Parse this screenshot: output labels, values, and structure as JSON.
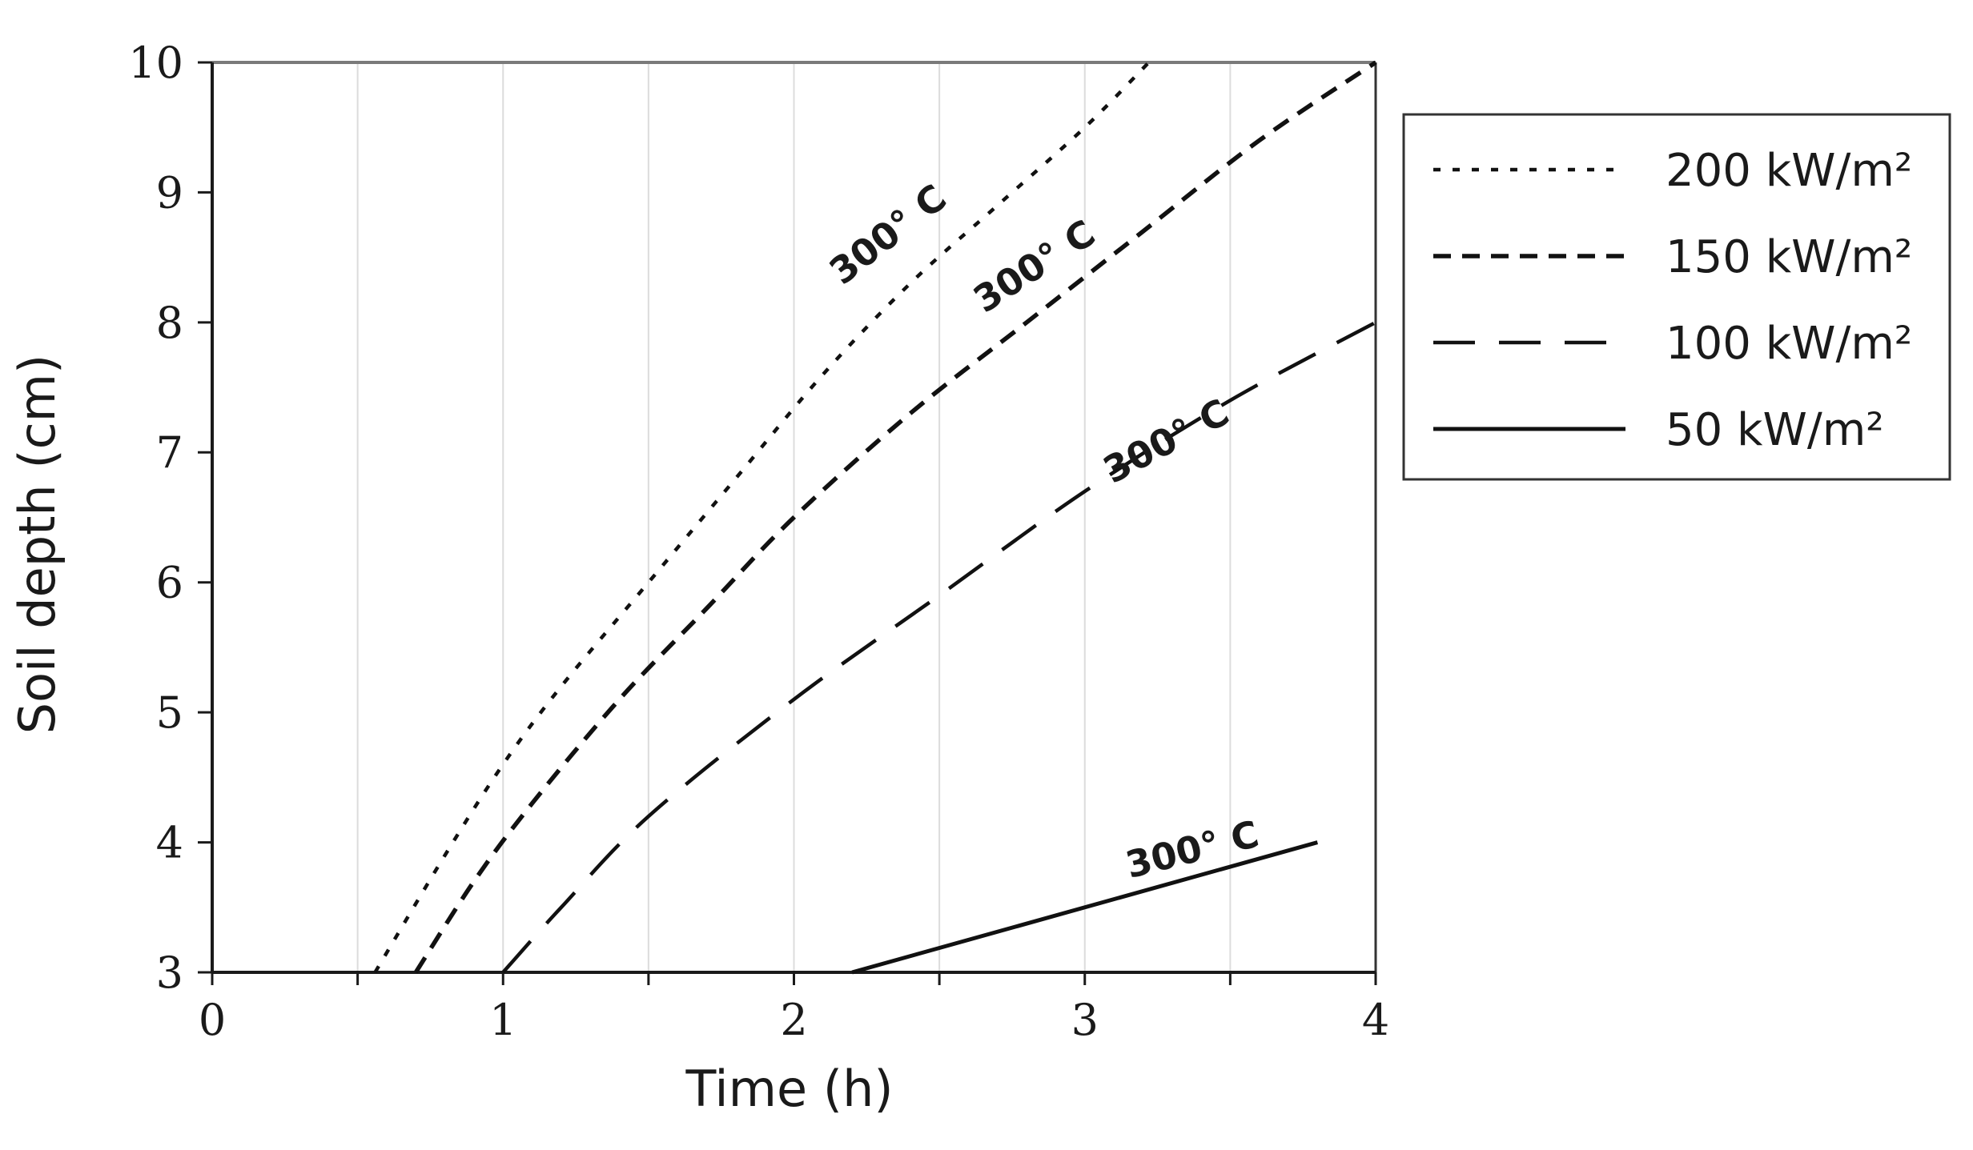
{
  "chart_data": {
    "type": "line",
    "title": "",
    "xlabel": "Time (h)",
    "ylabel": "Soil depth (cm)",
    "xlim": [
      0,
      4
    ],
    "ylim": [
      3,
      10
    ],
    "xticks": [
      0,
      1,
      2,
      3,
      4
    ],
    "yticks": [
      3,
      4,
      5,
      6,
      7,
      8,
      9,
      10
    ],
    "xtick_labels": [
      "0",
      "1",
      "2",
      "3",
      "4"
    ],
    "ytick_labels": [
      "3",
      "4",
      "5",
      "6",
      "7",
      "8",
      "9",
      "10"
    ],
    "grid": "vertical",
    "legend_position": "right",
    "series": [
      {
        "name": "200 kW/m²",
        "style": "dotted",
        "x": [
          0.56,
          0.8,
          1.0,
          1.2,
          1.5,
          1.8,
          2.1,
          2.4,
          2.7,
          3.0,
          3.22
        ],
        "y": [
          3.0,
          3.9,
          4.6,
          5.2,
          6.0,
          6.8,
          7.6,
          8.3,
          8.9,
          9.5,
          10.0
        ]
      },
      {
        "name": "150 kW/m²",
        "style": "short-dash",
        "x": [
          0.7,
          0.9,
          1.1,
          1.4,
          1.7,
          2.0,
          2.4,
          2.8,
          3.2,
          3.6,
          4.0
        ],
        "y": [
          3.0,
          3.7,
          4.3,
          5.1,
          5.8,
          6.5,
          7.3,
          8.0,
          8.7,
          9.4,
          10.0
        ]
      },
      {
        "name": "100 kW/m²",
        "style": "long-dash",
        "x": [
          1.0,
          1.2,
          1.5,
          2.0,
          2.5,
          3.0,
          3.5,
          4.0
        ],
        "y": [
          3.0,
          3.5,
          4.2,
          5.1,
          5.9,
          6.7,
          7.4,
          8.0
        ]
      },
      {
        "name": "50 kW/m²",
        "style": "solid",
        "x": [
          2.2,
          3.8
        ],
        "y": [
          3.0,
          4.0
        ]
      }
    ],
    "annotations": [
      {
        "text": "300° C",
        "series": "200 kW/m²",
        "x": 2.35,
        "y": 8.6,
        "angle": -38
      },
      {
        "text": "300° C",
        "series": "150 kW/m²",
        "x": 2.85,
        "y": 8.35,
        "angle": -33
      },
      {
        "text": "300° C",
        "series": "100 kW/m²",
        "x": 3.3,
        "y": 7.0,
        "angle": -28
      },
      {
        "text": "300° C",
        "series": "50 kW/m²",
        "x": 3.38,
        "y": 3.85,
        "angle": -14
      }
    ]
  }
}
